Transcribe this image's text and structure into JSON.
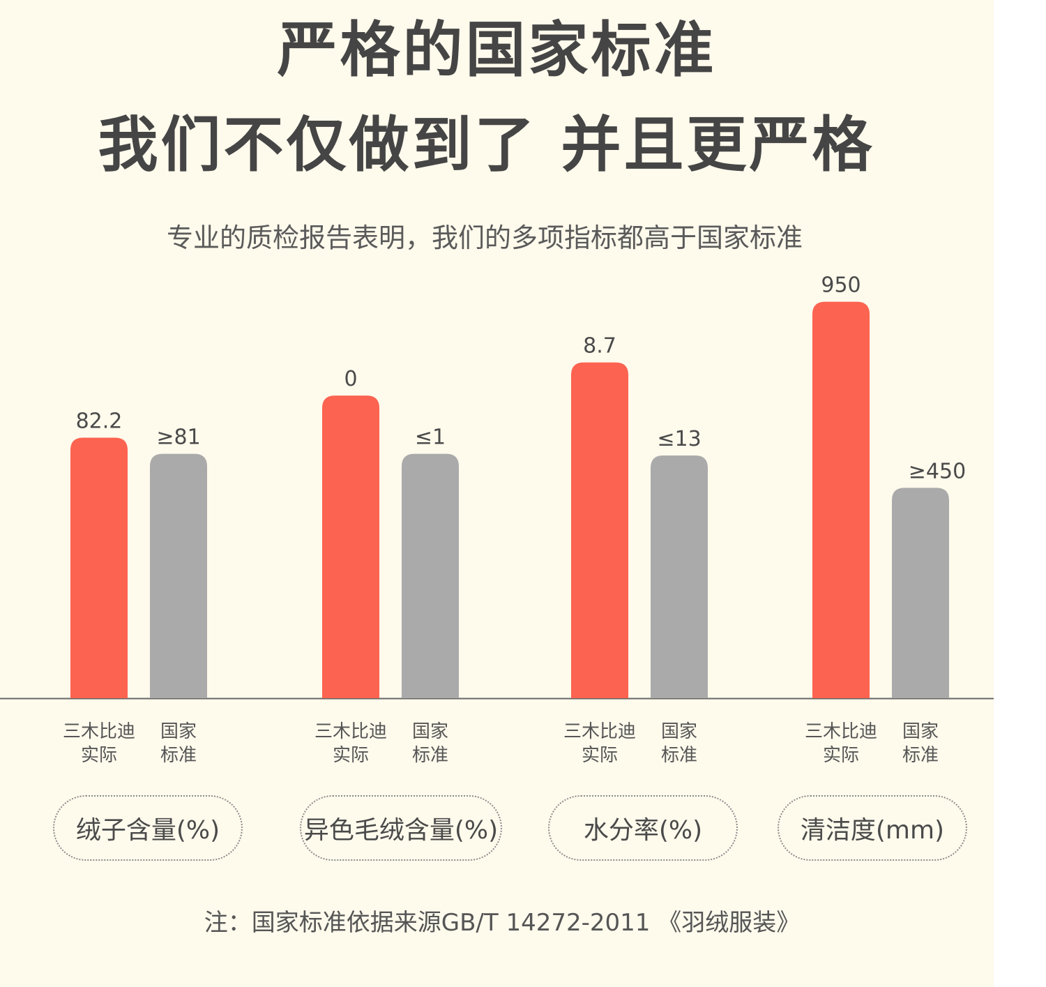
{
  "title_line1": "严格的国家标准",
  "title_line2": "我们不仅做到了 并且更严格",
  "subtitle": "专业的质检报告表明，我们的多项指标都高于国家标准",
  "legend": {
    "actual": "三木比迪\n实际",
    "standard": "国家\n标准"
  },
  "colors": {
    "actual": "#fc6350",
    "standard": "#aaaaaa",
    "background": "#fefaec"
  },
  "chart_data": {
    "type": "bar",
    "categories": [
      "绒子含量(%)",
      "异色毛绒含量(%)",
      "水分率(%)",
      "清洁度(mm)"
    ],
    "series": [
      {
        "name": "三木比迪实际",
        "values": [
          82.2,
          0,
          8.7,
          950
        ],
        "labels": [
          "82.2",
          "0",
          "8.7",
          "950"
        ]
      },
      {
        "name": "国家标准",
        "values": [
          81,
          1,
          13,
          450
        ],
        "labels": [
          "≥81",
          "≤1",
          "≤13",
          "≥450"
        ]
      }
    ],
    "display_levels": {
      "actual": [
        0.644,
        0.748,
        0.83,
        0.98
      ],
      "standard": [
        0.604,
        0.604,
        0.6,
        0.52
      ]
    }
  },
  "note": "注：国家标准依据来源GB/T 14272-2011 《羽绒服装》"
}
